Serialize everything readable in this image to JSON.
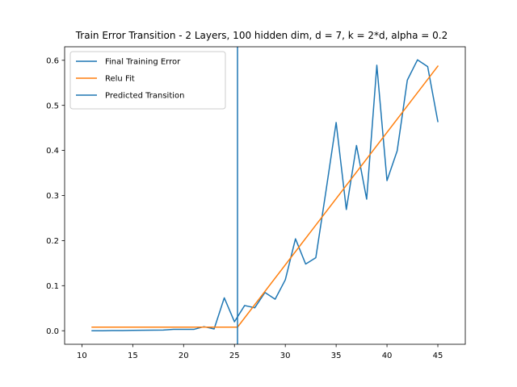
{
  "chart_data": {
    "type": "line",
    "title": "Train Error Transition - 2 Layers, 100 hidden dim, d = 7, k = 2*d, alpha = 0.2",
    "xlabel": "",
    "ylabel": "",
    "xlim": [
      8.3,
      47.7
    ],
    "ylim": [
      -0.03,
      0.63
    ],
    "xticks": [
      10,
      15,
      20,
      25,
      30,
      35,
      40,
      45
    ],
    "yticks": [
      0.0,
      0.1,
      0.2,
      0.3,
      0.4,
      0.5,
      0.6
    ],
    "ytick_labels": [
      "0.0",
      "0.1",
      "0.2",
      "0.3",
      "0.4",
      "0.5",
      "0.6"
    ],
    "grid": false,
    "legend_position": "top-left",
    "series": [
      {
        "name": "Final Training Error",
        "color": "#1f77b4",
        "kind": "line",
        "x": [
          11,
          12,
          13,
          14,
          15,
          16,
          17,
          18,
          19,
          20,
          21,
          22,
          23,
          24,
          25,
          26,
          27,
          28,
          29,
          30,
          31,
          32,
          33,
          34,
          35,
          36,
          37,
          38,
          39,
          40,
          41,
          42,
          43,
          44,
          45
        ],
        "y": [
          0.0,
          0.0,
          0.0005,
          0.0005,
          0.0008,
          0.001,
          0.0012,
          0.0015,
          0.003,
          0.003,
          0.003,
          0.009,
          0.004,
          0.073,
          0.02,
          0.056,
          0.051,
          0.085,
          0.07,
          0.113,
          0.204,
          0.148,
          0.162,
          0.31,
          0.462,
          0.269,
          0.411,
          0.292,
          0.589,
          0.333,
          0.399,
          0.556,
          0.601,
          0.586,
          0.464
        ]
      },
      {
        "name": "Relu Fit",
        "color": "#ff7f0e",
        "kind": "line",
        "x": [
          11,
          25.3,
          45
        ],
        "y": [
          0.008,
          0.008,
          0.587
        ]
      },
      {
        "name": "Predicted Transition",
        "color": "#1f77b4",
        "kind": "vline",
        "x": 25.3
      }
    ]
  }
}
